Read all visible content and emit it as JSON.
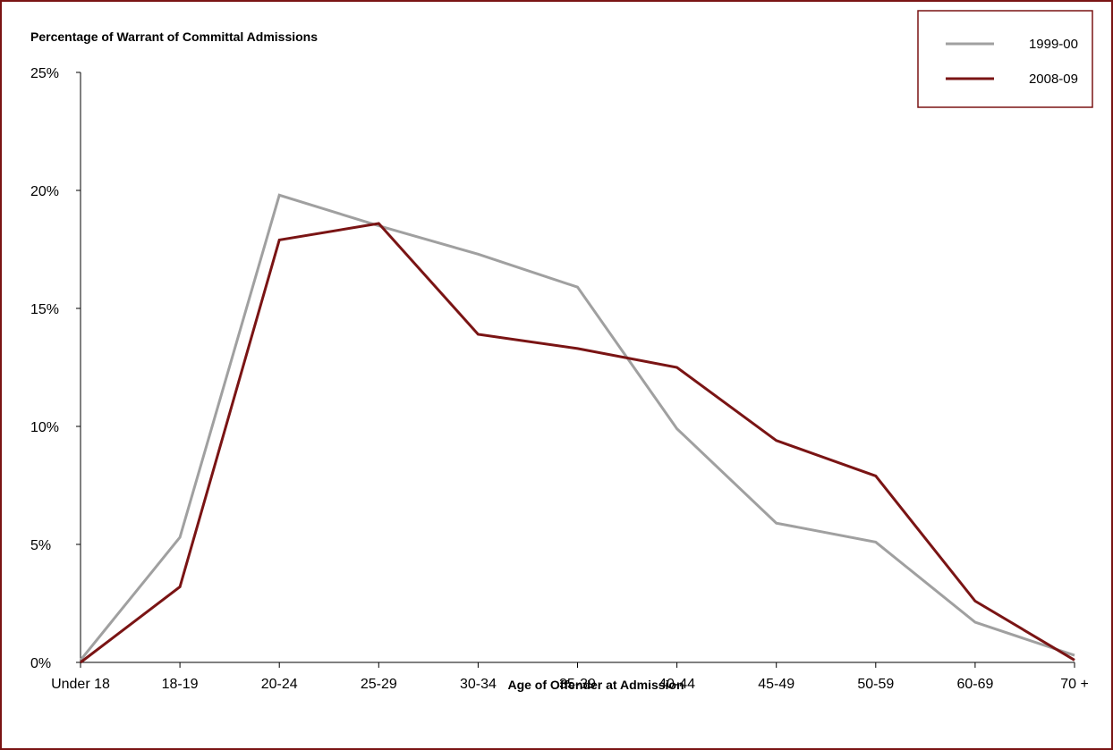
{
  "chart_data": {
    "type": "line",
    "title": "Percentage of Warrant of Committal Admissions",
    "xlabel": "Age of Offender at Admission",
    "ylabel": "",
    "categories": [
      "Under 18",
      "18-19",
      "20-24",
      "25-29",
      "30-34",
      "35-39",
      "40-44",
      "45-49",
      "50-59",
      "60-69",
      "70 +"
    ],
    "ylim": [
      0,
      25
    ],
    "y_ticks": [
      0,
      5,
      10,
      15,
      20,
      25
    ],
    "y_tick_labels": [
      "0%",
      "5%",
      "10%",
      "15%",
      "20%",
      "25%"
    ],
    "grid": false,
    "legend_position": "top-right",
    "series": [
      {
        "name": "1999-00",
        "color": "#a0a0a0",
        "values": [
          0.1,
          5.3,
          19.8,
          18.5,
          17.3,
          15.9,
          9.9,
          5.9,
          5.1,
          1.7,
          0.3
        ]
      },
      {
        "name": "2008-09",
        "color": "#7a1414",
        "values": [
          0.0,
          3.2,
          17.9,
          18.6,
          13.9,
          13.3,
          12.5,
          9.4,
          7.9,
          2.6,
          0.1
        ]
      }
    ]
  }
}
